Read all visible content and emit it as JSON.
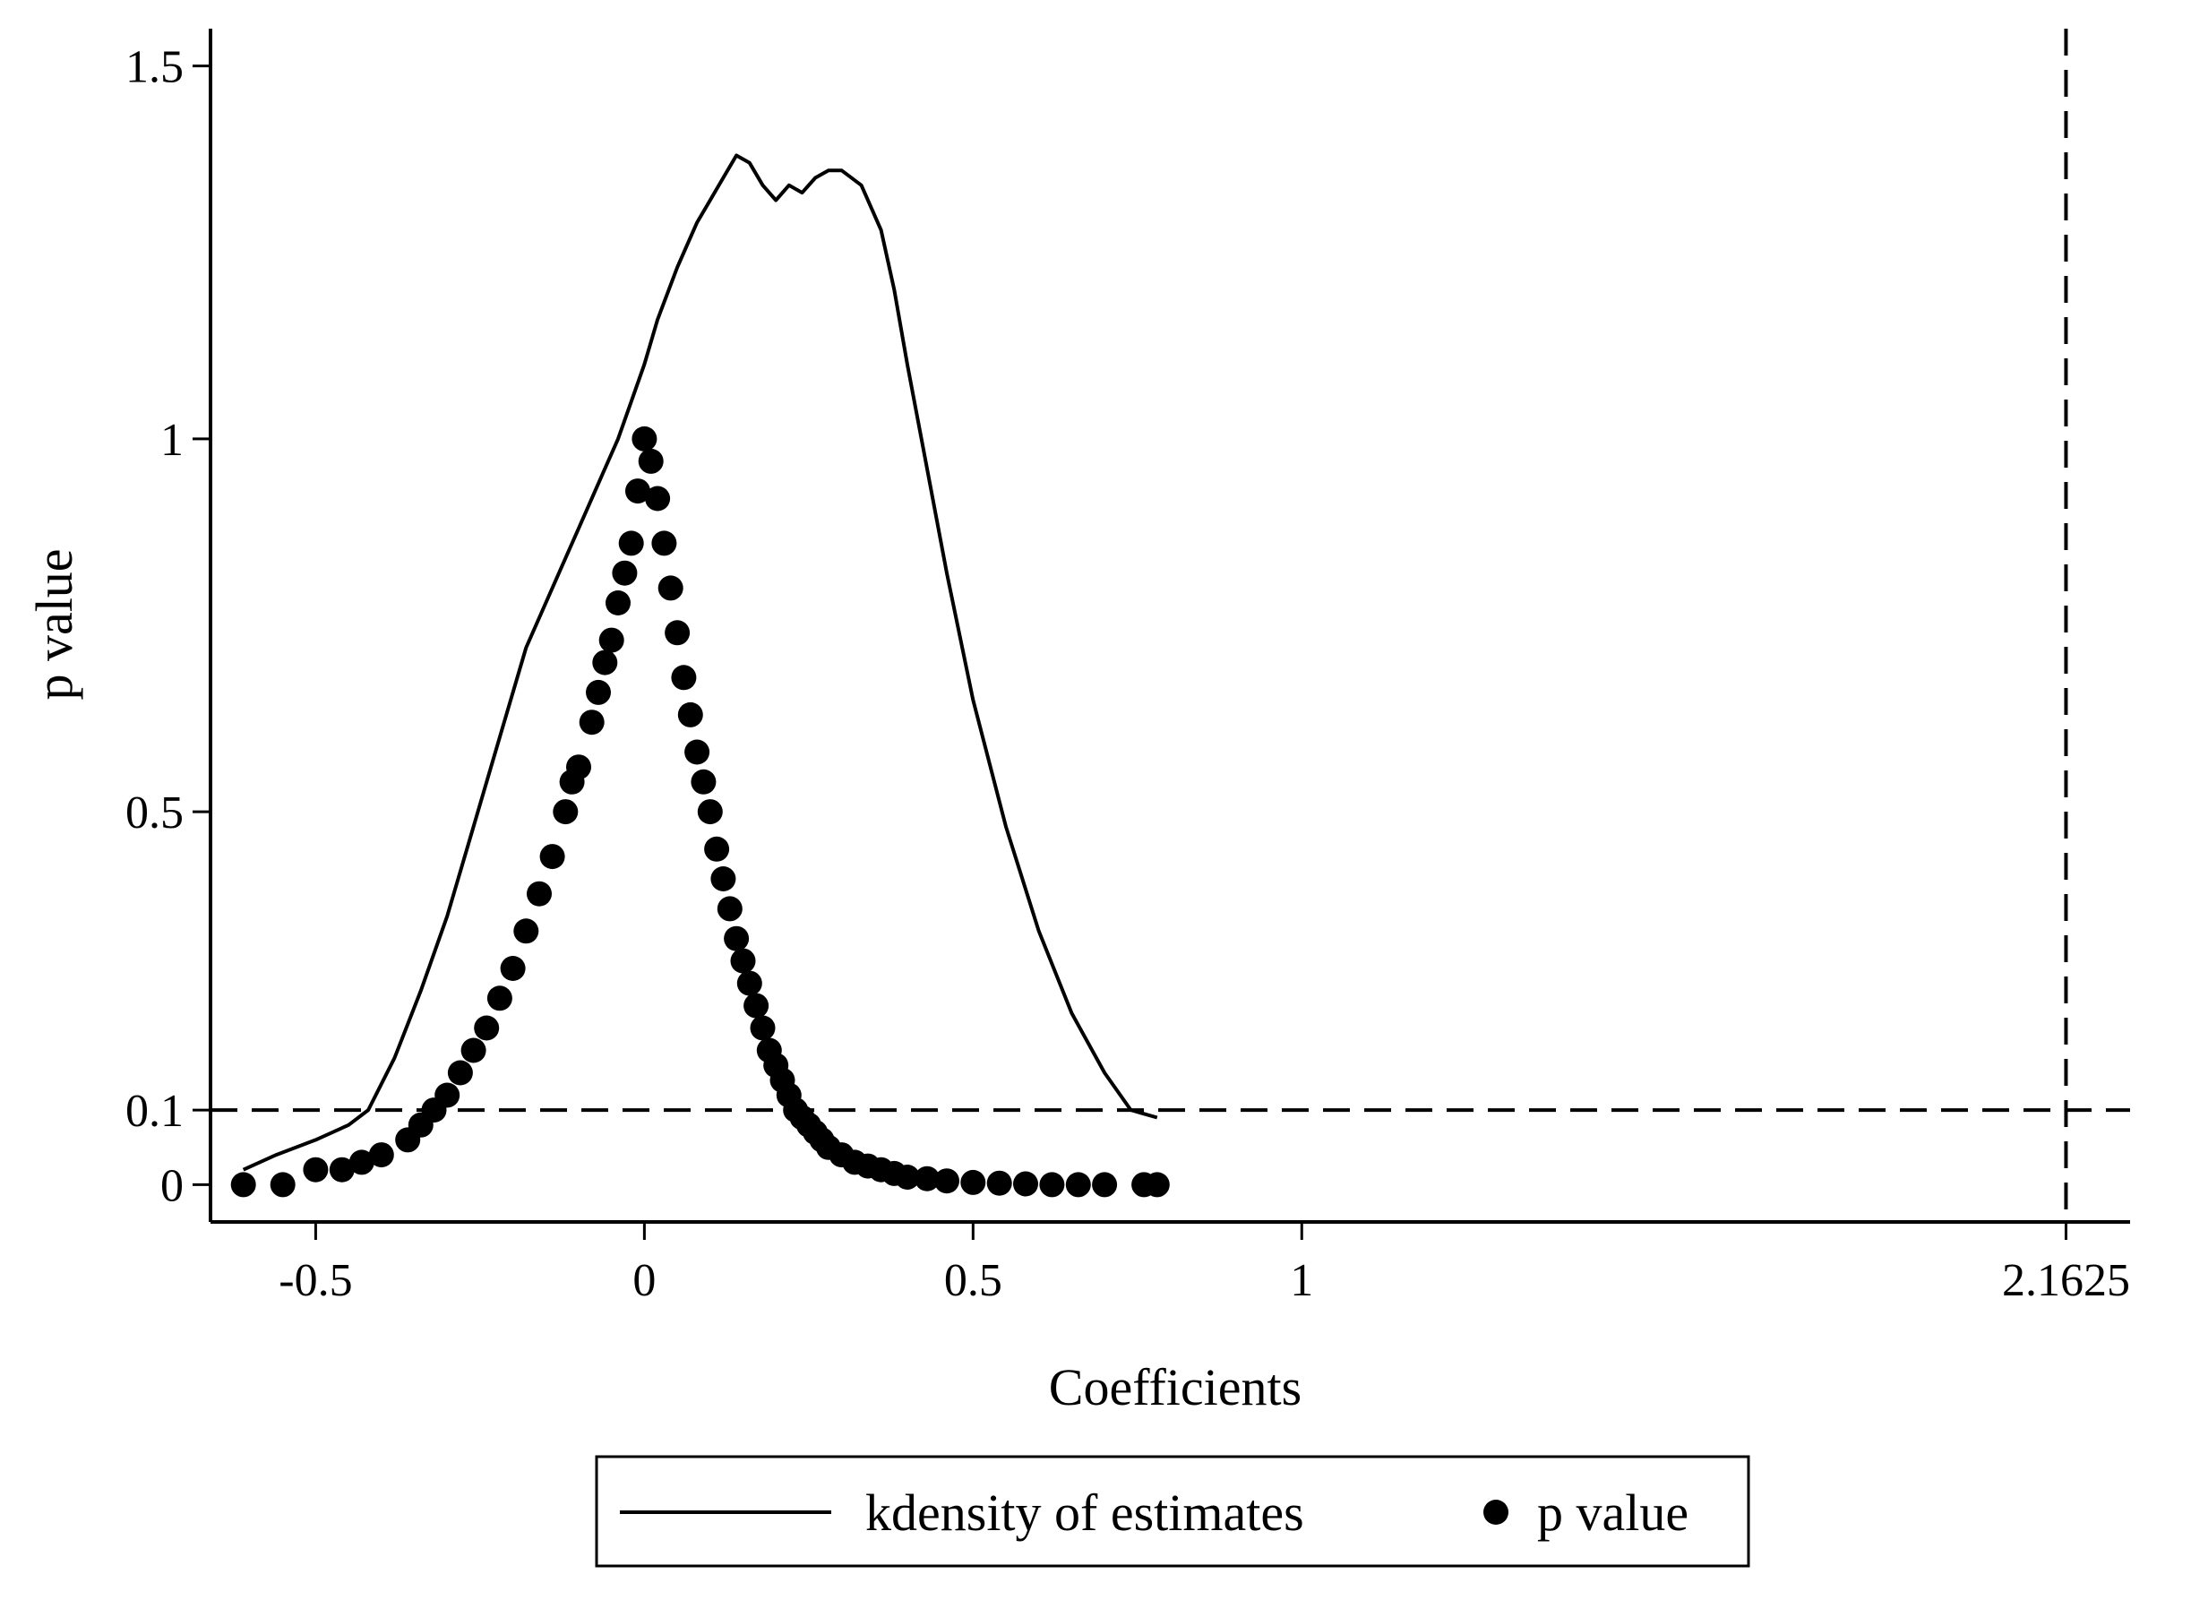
{
  "chart_data": {
    "type": "line+scatter",
    "title": "",
    "xlabel": "Coefficients",
    "ylabel": "p value",
    "xlim": [
      -0.66,
      2.26
    ],
    "ylim": [
      -0.05,
      1.55
    ],
    "x_ticks": [
      {
        "value": -0.5,
        "label": "-0.5"
      },
      {
        "value": 0,
        "label": "0"
      },
      {
        "value": 0.5,
        "label": "0.5"
      },
      {
        "value": 1,
        "label": "1"
      },
      {
        "value": 2.1625,
        "label": "2.1625"
      }
    ],
    "y_ticks": [
      {
        "value": 0,
        "label": "0"
      },
      {
        "value": 0.1,
        "label": "0.1"
      },
      {
        "value": 0.5,
        "label": "0.5"
      },
      {
        "value": 1,
        "label": "1"
      },
      {
        "value": 1.5,
        "label": "1.5"
      }
    ],
    "reference_lines": [
      {
        "axis": "y",
        "value": 0.1,
        "style": "dashed"
      },
      {
        "axis": "x",
        "value": 2.1625,
        "style": "dashed"
      }
    ],
    "series": [
      {
        "name": "kdensity of estimates",
        "kind": "line",
        "color": "#000000",
        "x": [
          -0.61,
          -0.56,
          -0.5,
          -0.45,
          -0.42,
          -0.38,
          -0.34,
          -0.3,
          -0.26,
          -0.22,
          -0.18,
          -0.14,
          -0.1,
          -0.06,
          -0.04,
          -0.02,
          0.0,
          0.02,
          0.05,
          0.08,
          0.1,
          0.12,
          0.14,
          0.16,
          0.18,
          0.2,
          0.22,
          0.24,
          0.26,
          0.28,
          0.3,
          0.33,
          0.36,
          0.38,
          0.4,
          0.43,
          0.46,
          0.5,
          0.55,
          0.6,
          0.65,
          0.7,
          0.74,
          0.78
        ],
        "y": [
          0.02,
          0.04,
          0.06,
          0.08,
          0.1,
          0.17,
          0.26,
          0.36,
          0.48,
          0.6,
          0.72,
          0.8,
          0.88,
          0.96,
          1.0,
          1.05,
          1.1,
          1.16,
          1.23,
          1.29,
          1.32,
          1.35,
          1.38,
          1.37,
          1.34,
          1.32,
          1.34,
          1.33,
          1.35,
          1.36,
          1.36,
          1.34,
          1.28,
          1.2,
          1.1,
          0.96,
          0.82,
          0.65,
          0.48,
          0.34,
          0.23,
          0.15,
          0.1,
          0.09
        ]
      },
      {
        "name": "p value",
        "kind": "scatter",
        "color": "#000000",
        "x": [
          -0.61,
          -0.55,
          -0.5,
          -0.46,
          -0.43,
          -0.4,
          -0.36,
          -0.34,
          -0.32,
          -0.3,
          -0.28,
          -0.26,
          -0.24,
          -0.22,
          -0.2,
          -0.18,
          -0.16,
          -0.14,
          -0.12,
          -0.11,
          -0.1,
          -0.08,
          -0.07,
          -0.06,
          -0.05,
          -0.04,
          -0.03,
          -0.02,
          -0.01,
          0.0,
          0.01,
          0.02,
          0.03,
          0.04,
          0.05,
          0.06,
          0.07,
          0.08,
          0.09,
          0.1,
          0.11,
          0.12,
          0.13,
          0.14,
          0.15,
          0.16,
          0.17,
          0.18,
          0.19,
          0.2,
          0.21,
          0.22,
          0.23,
          0.24,
          0.25,
          0.26,
          0.27,
          0.28,
          0.3,
          0.32,
          0.34,
          0.36,
          0.38,
          0.4,
          0.43,
          0.46,
          0.5,
          0.54,
          0.58,
          0.62,
          0.66,
          0.7,
          0.76,
          0.78
        ],
        "y": [
          0.0,
          0.0,
          0.02,
          0.02,
          0.03,
          0.04,
          0.06,
          0.08,
          0.1,
          0.12,
          0.15,
          0.18,
          0.21,
          0.25,
          0.29,
          0.34,
          0.39,
          0.44,
          0.5,
          0.54,
          0.56,
          0.62,
          0.66,
          0.7,
          0.73,
          0.78,
          0.82,
          0.86,
          0.93,
          1.0,
          0.97,
          0.92,
          0.86,
          0.8,
          0.74,
          0.68,
          0.63,
          0.58,
          0.54,
          0.5,
          0.45,
          0.41,
          0.37,
          0.33,
          0.3,
          0.27,
          0.24,
          0.21,
          0.18,
          0.16,
          0.14,
          0.12,
          0.1,
          0.09,
          0.08,
          0.07,
          0.06,
          0.05,
          0.04,
          0.03,
          0.025,
          0.02,
          0.015,
          0.01,
          0.008,
          0.005,
          0.003,
          0.002,
          0.001,
          0.0,
          0.0,
          0.0,
          0.0,
          0.0
        ]
      }
    ],
    "legend": {
      "position": "bottom",
      "entries": [
        {
          "label": "kdensity of estimates",
          "symbol": "line"
        },
        {
          "label": "p value",
          "symbol": "dot"
        }
      ]
    }
  }
}
